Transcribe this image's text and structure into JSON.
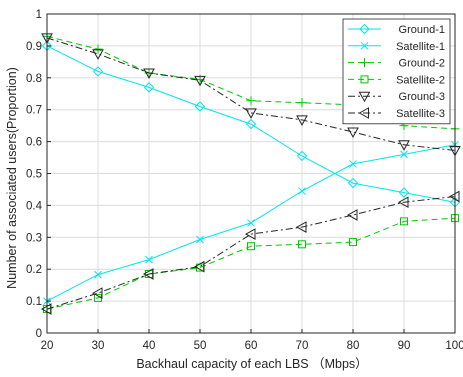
{
  "chart_data": {
    "type": "line",
    "title": "",
    "xlabel": "Backhaul capacity of each LBS （Mbps）",
    "ylabel": "Number of associated users(Proportion)",
    "x": [
      20,
      30,
      40,
      50,
      60,
      70,
      80,
      90,
      100
    ],
    "xlim": [
      20,
      100
    ],
    "ylim": [
      0,
      1
    ],
    "x_ticks": [
      "20",
      "30",
      "40",
      "50",
      "60",
      "70",
      "80",
      "90",
      "100"
    ],
    "y_ticks": [
      "0",
      "0.1",
      "0.2",
      "0.3",
      "0.4",
      "0.5",
      "0.6",
      "0.7",
      "0.8",
      "0.9",
      "1"
    ],
    "grid": true,
    "legend_position": "top-right",
    "series": [
      {
        "name": "Ground-1",
        "color": "#00e5ee",
        "line_style": "solid",
        "marker": "diamond",
        "values": [
          0.9,
          0.82,
          0.77,
          0.71,
          0.655,
          0.555,
          0.47,
          0.44,
          0.41
        ]
      },
      {
        "name": "Satellite-1",
        "color": "#00e5ee",
        "line_style": "solid",
        "marker": "x",
        "values": [
          0.1,
          0.183,
          0.23,
          0.293,
          0.345,
          0.445,
          0.53,
          0.56,
          0.59
        ]
      },
      {
        "name": "Ground-2",
        "color": "#00c800",
        "line_style": "dashed",
        "marker": "plus",
        "values": [
          0.93,
          0.89,
          0.815,
          0.795,
          0.728,
          0.722,
          0.715,
          0.65,
          0.64
        ]
      },
      {
        "name": "Satellite-2",
        "color": "#00c800",
        "line_style": "dashed",
        "marker": "square",
        "values": [
          0.075,
          0.11,
          0.185,
          0.205,
          0.272,
          0.278,
          0.285,
          0.35,
          0.36
        ]
      },
      {
        "name": "Ground-3",
        "color": "#262626",
        "line_style": "dashdot",
        "marker": "triangle-down",
        "values": [
          0.925,
          0.875,
          0.815,
          0.792,
          0.69,
          0.668,
          0.63,
          0.59,
          0.572
        ]
      },
      {
        "name": "Satellite-3",
        "color": "#262626",
        "line_style": "dashdot",
        "marker": "triangle-left",
        "values": [
          0.075,
          0.125,
          0.185,
          0.208,
          0.31,
          0.332,
          0.37,
          0.41,
          0.428
        ]
      }
    ]
  }
}
